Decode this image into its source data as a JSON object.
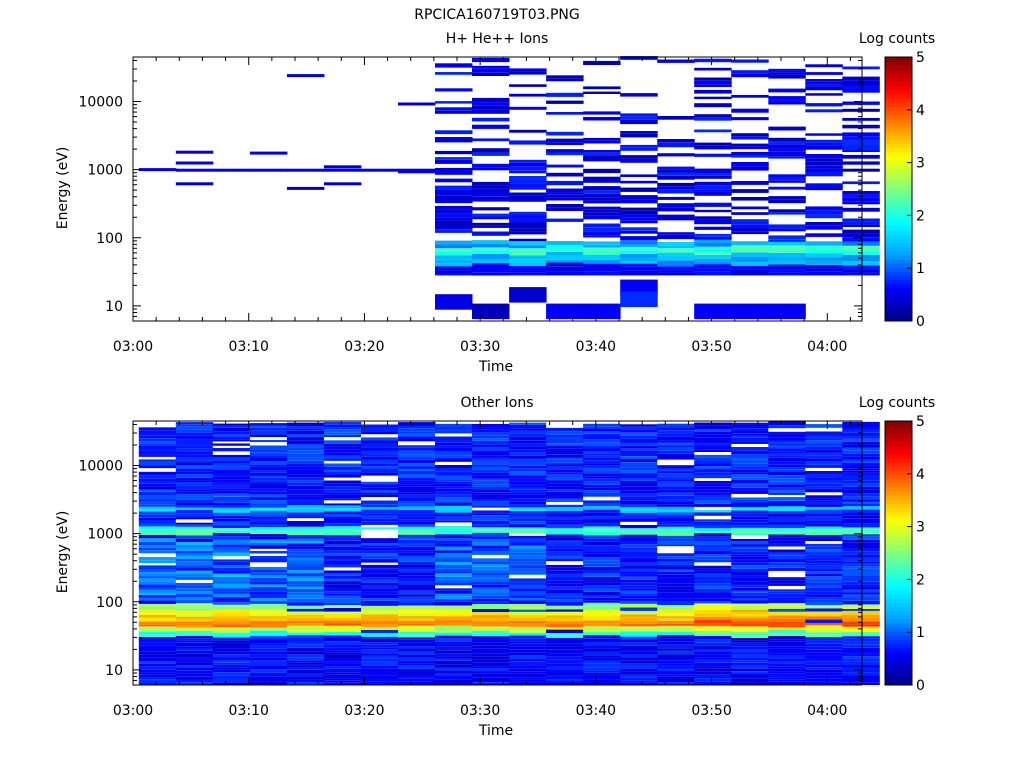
{
  "figure": {
    "title": "RPCICA160719T03.PNG"
  },
  "colors": {
    "colormap": [
      "#000080",
      "#0000ff",
      "#00a0ff",
      "#00ffff",
      "#80ff80",
      "#ffff00",
      "#ff8000",
      "#ff0000",
      "#800000"
    ],
    "background": "#ffffff",
    "axis": "#000000"
  },
  "chart_data": [
    {
      "type": "heatmap",
      "title": "H+ He++ Ions",
      "xlabel": "Time",
      "ylabel": "Energy (eV)",
      "x_ticks": [
        "03:00",
        "03:10",
        "03:20",
        "03:30",
        "03:40",
        "03:50",
        "04:00"
      ],
      "x_tick_minutes": [
        0,
        10,
        20,
        30,
        40,
        50,
        60
      ],
      "xlim_minutes": [
        0,
        63
      ],
      "y_scale": "log",
      "ylim": [
        6,
        45000
      ],
      "y_ticks": [
        "10",
        "100",
        "1000",
        "10000"
      ],
      "y_tick_values": [
        10,
        100,
        1000,
        10000
      ],
      "colorbar": {
        "label": "Log counts",
        "ticks": [
          "0",
          "1",
          "2",
          "3",
          "4",
          "5"
        ],
        "range": [
          0,
          5
        ]
      },
      "time_bins_minutes": [
        0.5,
        3.7,
        6.9,
        10.1,
        13.3,
        16.5,
        19.7,
        22.9,
        26.1,
        29.3,
        32.5,
        35.7,
        38.9,
        42.1,
        45.3,
        48.5,
        51.7,
        54.9,
        58.1,
        61.3
      ],
      "bands": [
        {
          "col": 0,
          "e": 1000,
          "v": 0.6
        },
        {
          "col": 1,
          "e": 1800,
          "v": 0.5
        },
        {
          "col": 1,
          "e": 1250,
          "v": 0.5
        },
        {
          "col": 1,
          "e": 980,
          "v": 0.6
        },
        {
          "col": 1,
          "e": 620,
          "v": 0.4
        },
        {
          "col": 2,
          "e": 980,
          "v": 0.6
        },
        {
          "col": 3,
          "e": 1750,
          "v": 0.5
        },
        {
          "col": 3,
          "e": 980,
          "v": 0.6
        },
        {
          "col": 4,
          "e": 24000,
          "v": 0.4
        },
        {
          "col": 4,
          "e": 980,
          "v": 0.6
        },
        {
          "col": 4,
          "e": 530,
          "v": 0.4
        },
        {
          "col": 5,
          "e": 1100,
          "v": 0.5
        },
        {
          "col": 5,
          "e": 980,
          "v": 0.6
        },
        {
          "col": 5,
          "e": 620,
          "v": 0.4
        },
        {
          "col": 6,
          "e": 980,
          "v": 0.6
        },
        {
          "col": 7,
          "e": 9200,
          "v": 0.4
        },
        {
          "col": 7,
          "e": 980,
          "v": 0.6
        },
        {
          "col": 7,
          "e": 930,
          "v": 0.5
        }
      ],
      "dense_region": {
        "from_col": 8,
        "to_col": 19
      },
      "low_energy_blocks": [
        {
          "col": 8,
          "e": 11,
          "v": 0.5
        },
        {
          "col": 9,
          "e": 8,
          "v": 0.3
        },
        {
          "col": 10,
          "e": 14,
          "v": 0.4
        },
        {
          "col": 11,
          "e": 8,
          "v": 0.6
        },
        {
          "col": 12,
          "e": 8,
          "v": 0.6
        },
        {
          "col": 13,
          "e": 18,
          "v": 0.6
        },
        {
          "col": 13,
          "e": 12,
          "v": 0.8
        },
        {
          "col": 15,
          "e": 8,
          "v": 0.6
        },
        {
          "col": 16,
          "e": 8,
          "v": 0.6
        },
        {
          "col": 17,
          "e": 8,
          "v": 0.6
        }
      ]
    },
    {
      "type": "heatmap",
      "title": "Other Ions",
      "xlabel": "Time",
      "ylabel": "Energy (eV)",
      "x_ticks": [
        "03:00",
        "03:10",
        "03:20",
        "03:30",
        "03:40",
        "03:50",
        "04:00"
      ],
      "x_tick_minutes": [
        0,
        10,
        20,
        30,
        40,
        50,
        60
      ],
      "xlim_minutes": [
        0,
        63
      ],
      "y_scale": "log",
      "ylim": [
        6,
        45000
      ],
      "y_ticks": [
        "10",
        "100",
        "1000",
        "10000"
      ],
      "y_tick_values": [
        10,
        100,
        1000,
        10000
      ],
      "colorbar": {
        "label": "Log counts",
        "ticks": [
          "0",
          "1",
          "2",
          "3",
          "4",
          "5"
        ],
        "range": [
          0,
          5
        ]
      },
      "time_bins_minutes": [
        0.5,
        3.7,
        6.9,
        10.1,
        13.3,
        16.5,
        19.7,
        22.9,
        26.1,
        29.3,
        32.5,
        35.7,
        38.9,
        42.1,
        45.3,
        48.5,
        51.7,
        54.9,
        58.1,
        61.3
      ],
      "energy_range": [
        6,
        40000
      ],
      "features": [
        {
          "e": 1000,
          "v": 2.2,
          "label": ""
        },
        {
          "e": 1100,
          "v": 2.0,
          "label": ""
        },
        {
          "e": 2200,
          "v": 1.6,
          "label": ""
        },
        {
          "e": 80,
          "v": 2.6,
          "label": ""
        },
        {
          "e": 65,
          "v": 3.1,
          "label": ""
        },
        {
          "e": 55,
          "v": 3.4,
          "label": ""
        },
        {
          "e": 45,
          "v": 3.8,
          "label": ""
        },
        {
          "e": 38,
          "v": 2.8,
          "label": ""
        },
        {
          "e": 32,
          "v": 2.0,
          "label": ""
        }
      ]
    }
  ]
}
